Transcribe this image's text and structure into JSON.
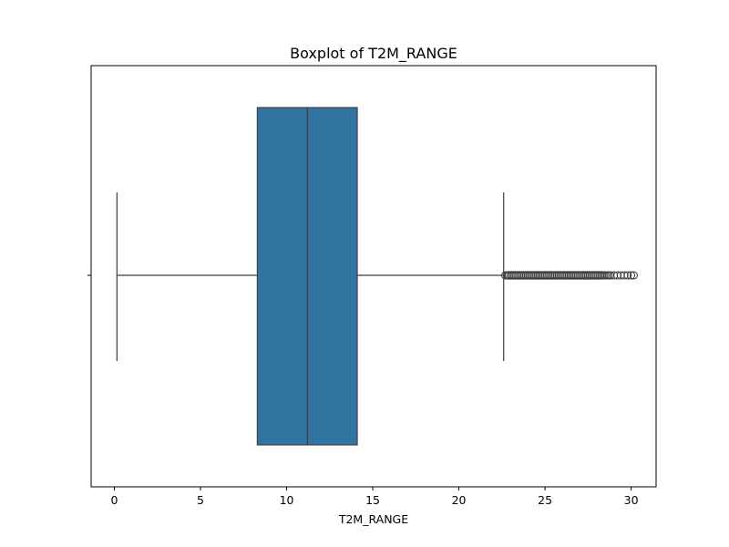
{
  "chart_data": {
    "type": "boxplot",
    "title": "Boxplot of T2M_RANGE",
    "xlabel": "T2M_RANGE",
    "ylabel": "",
    "xlim": [
      -1.35,
      31.45
    ],
    "xticks": [
      0,
      5,
      10,
      15,
      20,
      25,
      30
    ],
    "xtick_labels": [
      "0",
      "5",
      "10",
      "15",
      "20",
      "25",
      "30"
    ],
    "orientation": "horizontal",
    "grid": false,
    "box": {
      "whisker_low": 0.15,
      "q1": 8.3,
      "median": 11.2,
      "q3": 14.1,
      "whisker_high": 22.6,
      "outlier_range": [
        22.65,
        30.15
      ],
      "outlier_samples": [
        22.7,
        22.8,
        22.9,
        23.0,
        23.1,
        23.2,
        23.3,
        23.4,
        23.5,
        23.6,
        23.7,
        23.8,
        23.9,
        24.0,
        24.1,
        24.2,
        24.3,
        24.4,
        24.5,
        24.6,
        24.7,
        24.8,
        24.9,
        25.0,
        25.1,
        25.2,
        25.3,
        25.4,
        25.5,
        25.6,
        25.7,
        25.8,
        25.9,
        26.0,
        26.1,
        26.2,
        26.3,
        26.4,
        26.5,
        26.6,
        26.7,
        26.8,
        26.9,
        27.0,
        27.1,
        27.2,
        27.3,
        27.4,
        27.5,
        27.6,
        27.7,
        27.8,
        27.9,
        28.0,
        28.1,
        28.2,
        28.3,
        28.4,
        28.5,
        28.6,
        28.7,
        28.8,
        29.0,
        29.2,
        29.4,
        29.6,
        29.8,
        30.0,
        30.15
      ]
    },
    "colors": {
      "box_fill": "#3274a1",
      "line": "#3f3f3f",
      "axes": "#000000"
    }
  }
}
